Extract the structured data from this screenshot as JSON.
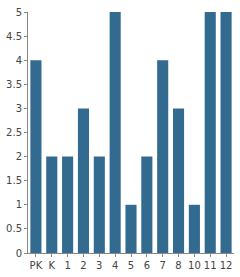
{
  "chart_data": {
    "type": "bar",
    "categories": [
      "PK",
      "K",
      "1",
      "2",
      "3",
      "4",
      "5",
      "6",
      "7",
      "8",
      "10",
      "11",
      "12"
    ],
    "values": [
      4,
      2,
      2,
      3,
      2,
      5,
      1,
      2,
      4,
      3,
      1,
      5,
      5
    ],
    "color": "#336a8f",
    "ylim": [
      0,
      5
    ],
    "yticks": [
      0,
      0.5,
      1,
      1.5,
      2,
      2.5,
      3,
      3.5,
      4,
      4.5,
      5
    ],
    "grid": false
  }
}
